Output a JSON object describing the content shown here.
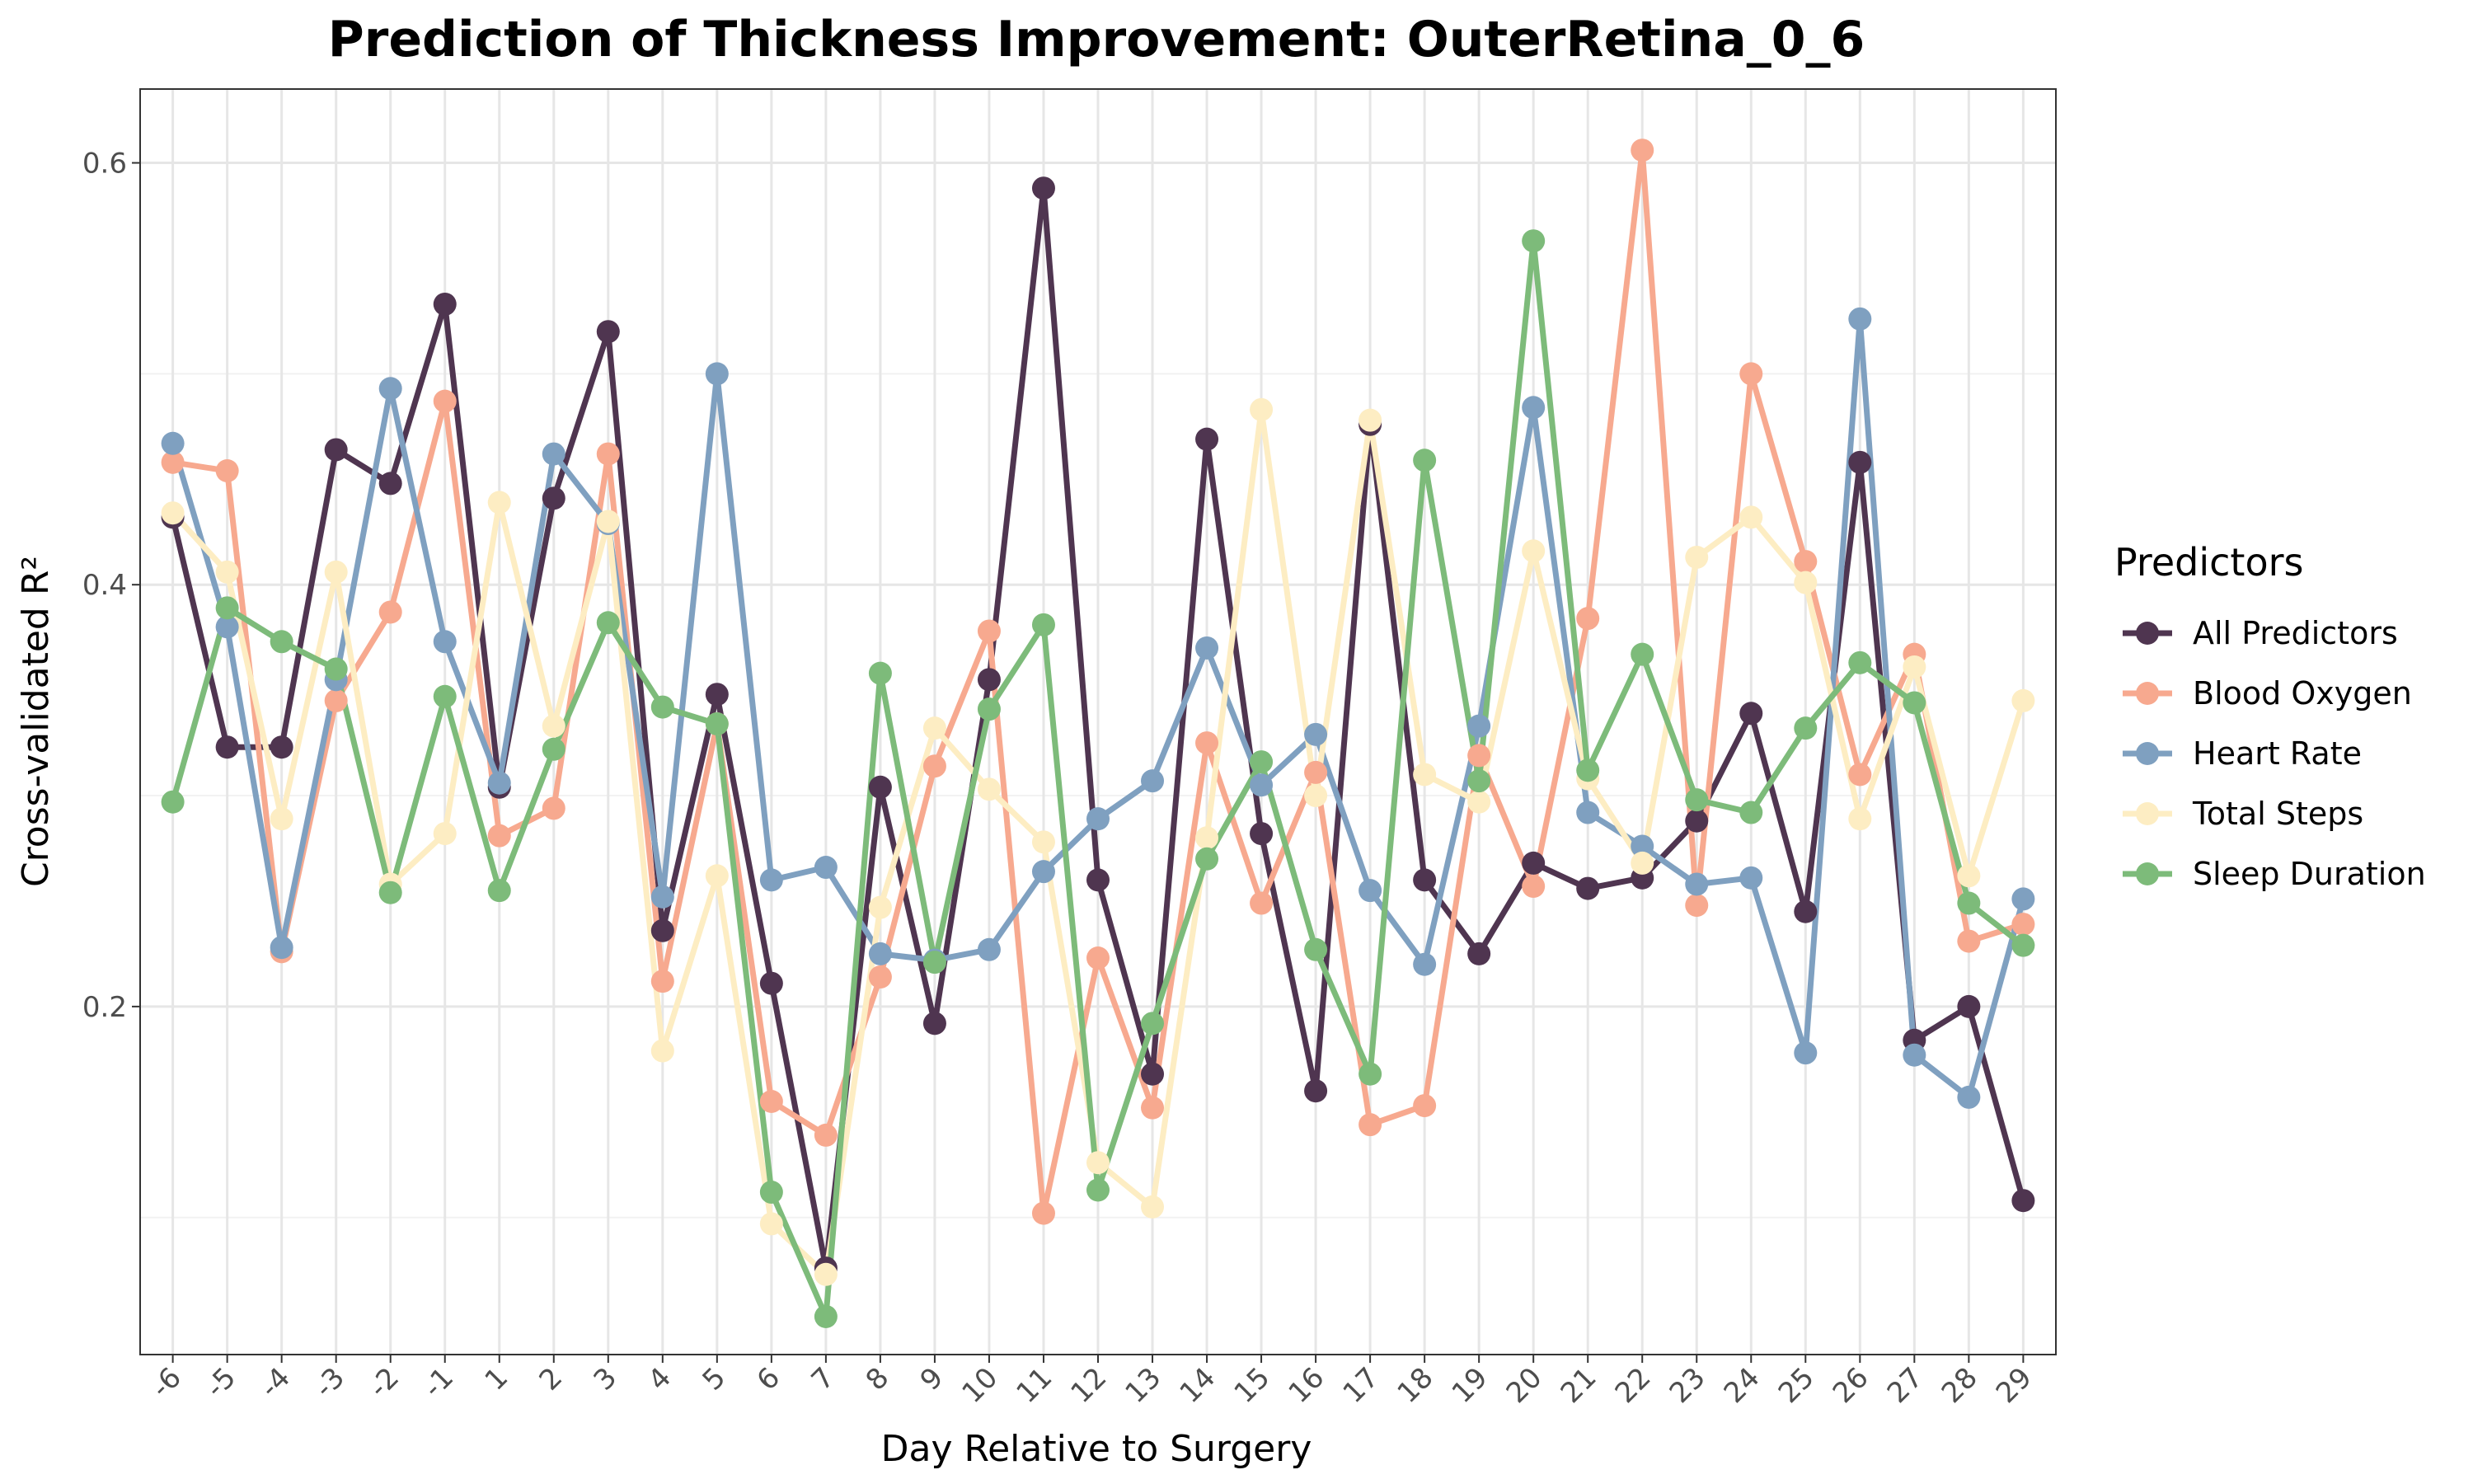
{
  "chart_data": {
    "type": "line",
    "title": "Prediction of Thickness Improvement: OuterRetina_0_6",
    "xlabel": "Day Relative to Surgery",
    "ylabel": "Cross-validated R²",
    "x": [
      -6,
      -5,
      -4,
      -3,
      -2,
      -1,
      1,
      2,
      3,
      4,
      5,
      6,
      7,
      8,
      9,
      10,
      11,
      12,
      13,
      14,
      15,
      16,
      17,
      18,
      19,
      20,
      21,
      22,
      23,
      24,
      25,
      26,
      27,
      28,
      29
    ],
    "ylim": [
      0.035,
      0.635
    ],
    "yticks": [
      0.2,
      0.4,
      0.6
    ],
    "ytick_labels": [
      "0.2",
      "0.4",
      "0.6"
    ],
    "grid": true,
    "legend": {
      "title": "Predictors",
      "placement": "right"
    },
    "series": [
      {
        "name": "All Predictors",
        "color": "#4f3550",
        "values": [
          0.432,
          0.323,
          0.323,
          0.464,
          0.448,
          0.533,
          0.304,
          0.441,
          0.52,
          0.236,
          0.348,
          0.211,
          0.076,
          0.304,
          0.192,
          0.355,
          0.588,
          0.26,
          0.168,
          0.469,
          0.282,
          0.16,
          0.476,
          0.26,
          0.225,
          0.268,
          0.256,
          0.261,
          0.288,
          0.339,
          0.245,
          0.458,
          0.184,
          0.2,
          0.108
        ]
      },
      {
        "name": "Blood Oxygen",
        "color": "#f7a98f",
        "values": [
          0.458,
          0.454,
          0.226,
          0.345,
          0.387,
          0.487,
          0.281,
          0.294,
          0.462,
          0.212,
          0.334,
          0.155,
          0.139,
          0.214,
          0.314,
          0.378,
          0.102,
          0.223,
          0.152,
          0.325,
          0.249,
          0.311,
          0.144,
          0.153,
          0.319,
          0.257,
          0.384,
          0.606,
          0.248,
          0.5,
          0.411,
          0.31,
          0.367,
          0.231,
          0.239
        ]
      },
      {
        "name": "Heart Rate",
        "color": "#7fa0c0",
        "values": [
          0.467,
          0.38,
          0.228,
          0.355,
          0.493,
          0.373,
          0.306,
          0.462,
          0.429,
          0.252,
          0.5,
          0.26,
          0.266,
          0.225,
          0.222,
          0.227,
          0.264,
          0.289,
          0.307,
          0.37,
          0.305,
          0.329,
          0.255,
          0.22,
          0.333,
          0.484,
          0.292,
          0.276,
          0.258,
          0.261,
          0.178,
          0.526,
          0.177,
          0.157,
          0.251
        ]
      },
      {
        "name": "Total Steps",
        "color": "#fdedc3",
        "values": [
          0.434,
          0.406,
          0.289,
          0.406,
          0.258,
          0.282,
          0.439,
          0.333,
          0.43,
          0.179,
          0.262,
          0.097,
          0.073,
          0.247,
          0.332,
          0.303,
          0.278,
          0.126,
          0.105,
          0.28,
          0.483,
          0.3,
          0.478,
          0.31,
          0.297,
          0.416,
          0.308,
          0.268,
          0.413,
          0.432,
          0.401,
          0.289,
          0.361,
          0.262,
          0.345
        ]
      },
      {
        "name": "Sleep Duration",
        "color": "#7dbb7a",
        "values": [
          0.297,
          0.389,
          0.373,
          0.36,
          0.254,
          0.347,
          0.255,
          0.322,
          0.382,
          0.342,
          0.334,
          0.112,
          0.053,
          0.358,
          0.221,
          0.341,
          0.381,
          0.113,
          0.192,
          0.27,
          0.316,
          0.227,
          0.168,
          0.459,
          0.307,
          0.563,
          0.312,
          0.367,
          0.298,
          0.292,
          0.332,
          0.363,
          0.344,
          0.249,
          0.229
        ]
      }
    ]
  }
}
